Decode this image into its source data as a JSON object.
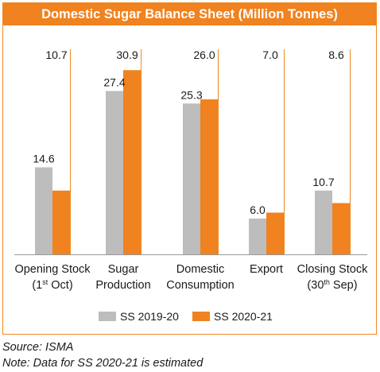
{
  "chart_data": {
    "type": "bar",
    "title": "Domestic Sugar Balance Sheet (Million Tonnes)",
    "categories": [
      [
        "Opening Stock",
        "(1st Oct)"
      ],
      [
        "Sugar",
        "Production"
      ],
      [
        "Domestic",
        "Consumption"
      ],
      [
        "Export"
      ],
      [
        "Closing Stock",
        "(30th Sep)"
      ]
    ],
    "series": [
      {
        "name": "SS 2019-20",
        "color": "#bdbdbd",
        "values": [
          14.6,
          27.4,
          25.3,
          6.0,
          10.7
        ]
      },
      {
        "name": "SS 2020-21",
        "color": "#f0821f",
        "values": [
          10.7,
          30.9,
          26.0,
          7.0,
          8.6
        ]
      }
    ],
    "data_labels": [
      [
        "14.6",
        "10.7"
      ],
      [
        "27.4",
        "30.9"
      ],
      [
        "25.3",
        "26.0"
      ],
      [
        "6.0",
        "7.0"
      ],
      [
        "10.7",
        "8.6"
      ]
    ],
    "ylim": [
      0,
      35
    ],
    "grid": false
  },
  "footer": {
    "source": "Source: ISMA",
    "note": "Note: Data for SS 2020-21 is estimated"
  }
}
